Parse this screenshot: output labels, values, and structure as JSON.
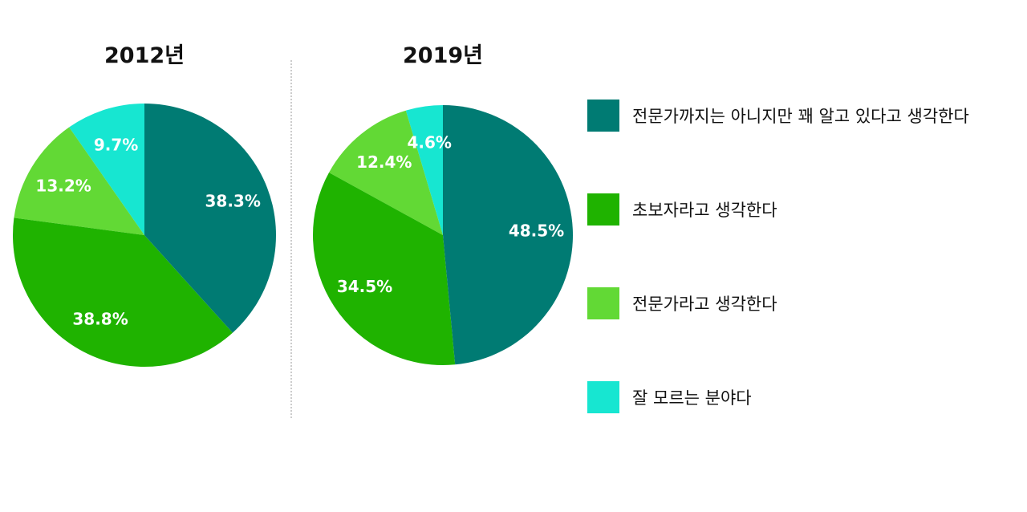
{
  "chart_data": [
    {
      "type": "pie",
      "title": "2012년",
      "slices": [
        {
          "label": "전문가까지는 아니지만 꽤 알고 있다고 생각한다",
          "value": 38.3,
          "display": "38.3%"
        },
        {
          "label": "초보자라고 생각한다",
          "value": 38.8,
          "display": "38.8%"
        },
        {
          "label": "전문가라고 생각한다",
          "value": 13.2,
          "display": "13.2%"
        },
        {
          "label": "잘 모르는 분야다",
          "value": 9.7,
          "display": "9.7%"
        }
      ]
    },
    {
      "type": "pie",
      "title": "2019년",
      "slices": [
        {
          "label": "전문가까지는 아니지만 꽤 알고 있다고 생각한다",
          "value": 48.5,
          "display": "48.5%"
        },
        {
          "label": "초보자라고 생각한다",
          "value": 34.5,
          "display": "34.5%"
        },
        {
          "label": "전문가라고 생각한다",
          "value": 12.4,
          "display": "12.4%"
        },
        {
          "label": "잘 모르는 분야다",
          "value": 4.6,
          "display": "4.6%"
        }
      ]
    }
  ],
  "legend": [
    {
      "label": "전문가까지는 아니지만 꽤 알고 있다고 생각한다",
      "color": "#007b73"
    },
    {
      "label": "초보자라고 생각한다",
      "color": "#1fb300"
    },
    {
      "label": "전문가라고 생각한다",
      "color": "#62d935"
    },
    {
      "label": "잘 모르는 분야다",
      "color": "#17e6d1"
    }
  ],
  "legend_placement": "right"
}
